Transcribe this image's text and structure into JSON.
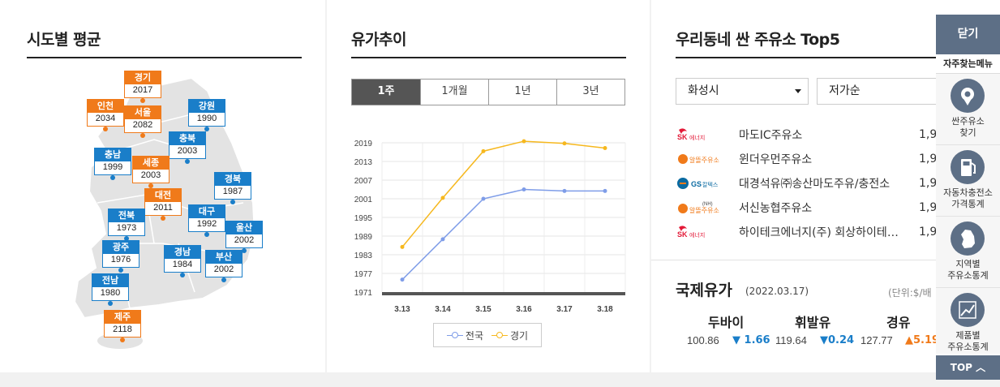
{
  "regional": {
    "title": "시도별 평균",
    "regions": [
      {
        "name": "경기",
        "value": "2017",
        "color": "orange"
      },
      {
        "name": "인천",
        "value": "2034",
        "color": "orange"
      },
      {
        "name": "서울",
        "value": "2082",
        "color": "orange"
      },
      {
        "name": "강원",
        "value": "1990",
        "color": "blue"
      },
      {
        "name": "충북",
        "value": "2003",
        "color": "blue"
      },
      {
        "name": "충남",
        "value": "1999",
        "color": "blue"
      },
      {
        "name": "세종",
        "value": "2003",
        "color": "orange"
      },
      {
        "name": "경북",
        "value": "1987",
        "color": "blue"
      },
      {
        "name": "대전",
        "value": "2011",
        "color": "orange"
      },
      {
        "name": "전북",
        "value": "1973",
        "color": "blue"
      },
      {
        "name": "대구",
        "value": "1992",
        "color": "blue"
      },
      {
        "name": "울산",
        "value": "2002",
        "color": "blue"
      },
      {
        "name": "광주",
        "value": "1976",
        "color": "blue"
      },
      {
        "name": "경남",
        "value": "1984",
        "color": "blue"
      },
      {
        "name": "부산",
        "value": "2002",
        "color": "blue"
      },
      {
        "name": "전남",
        "value": "1980",
        "color": "blue"
      },
      {
        "name": "제주",
        "value": "2118",
        "color": "orange"
      }
    ]
  },
  "trend": {
    "title": "유가추이",
    "tabs": [
      "1주",
      "1개월",
      "1년",
      "3년"
    ],
    "active_tab": 0,
    "legend": [
      "전국",
      "경기"
    ]
  },
  "chart_data": {
    "type": "line",
    "categories": [
      "3.13",
      "3.14",
      "3.15",
      "3.16",
      "3.17",
      "3.18"
    ],
    "series": [
      {
        "name": "전국",
        "values": [
          1975,
          1988,
          2001,
          2004,
          2003.5,
          2003.5
        ],
        "color": "#7f9de8"
      },
      {
        "name": "경기",
        "values": [
          1985.5,
          2001.3,
          2016.3,
          2019.5,
          2018.8,
          2017.3
        ],
        "color": "#f6b81e"
      }
    ],
    "y_ticks": [
      2019,
      2013,
      2007,
      2001,
      1995,
      1989,
      1983,
      1977,
      1971
    ],
    "ylim": [
      1971,
      2019
    ],
    "grid": true
  },
  "top5": {
    "title": "우리동네 싼 주유소 Top5",
    "region_select": "화성시",
    "sort_select": "저가순",
    "stations": [
      {
        "brand": "SK에너지",
        "logo": "sk",
        "name": "마도IC주유소",
        "price": "1,9"
      },
      {
        "brand": "알뜰주유소",
        "logo": "altteul",
        "name": "윈더우먼주유소",
        "price": "1,9"
      },
      {
        "brand": "GS칼텍스",
        "logo": "gs",
        "name": "대경석유㈜송산마도주유/충전소",
        "price": "1,9"
      },
      {
        "brand": "알뜰주유소",
        "logo": "nh",
        "name": "서신농협주유소",
        "price": "1,9"
      },
      {
        "brand": "SK에너지",
        "logo": "sk",
        "name": "하이테크에너지(주) 회상하이테…",
        "price": "1,9"
      }
    ]
  },
  "international": {
    "title": "국제유가",
    "date": "(2022.03.17)",
    "unit": "(단위:$/배",
    "items": [
      {
        "name": "두바이",
        "value": "100.86",
        "change": "▼ 1.66",
        "dir": "down"
      },
      {
        "name": "휘발유",
        "value": "119.64",
        "change": "▼0.24",
        "dir": "down"
      },
      {
        "name": "경유",
        "value": "127.77",
        "change": "▲5.19",
        "dir": "up"
      }
    ]
  },
  "quick_menu": {
    "close": "닫기",
    "favorites": "자주찾는메뉴",
    "items": [
      {
        "label": "싼주유소\n찾기",
        "icon": "location-pin-icon"
      },
      {
        "label": "자동차충전소\n가격통계",
        "icon": "fuel-pump-icon"
      },
      {
        "label": "지역별\n주유소통계",
        "icon": "korea-map-icon"
      },
      {
        "label": "제품별\n주유소통계",
        "icon": "line-chart-icon"
      }
    ],
    "top": "TOP"
  },
  "colors": {
    "blue": "#1a7ec9",
    "orange": "#f07a1a",
    "slate": "#5d6f86"
  }
}
